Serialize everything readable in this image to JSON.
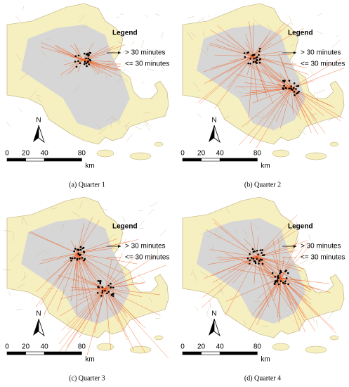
{
  "panels": [
    {
      "caption": "(a) Quarter 1"
    },
    {
      "caption": "(b) Quarter 2"
    },
    {
      "caption": "(c) Quarter 3"
    },
    {
      "caption": "(d) Quarter 4"
    }
  ],
  "legend": {
    "title": "Legend",
    "items": [
      "> 30 minutes",
      "<= 30 minutes"
    ]
  },
  "north": "N",
  "scale": {
    "ticks": [
      0,
      20,
      40,
      80
    ],
    "unit": "km"
  }
}
